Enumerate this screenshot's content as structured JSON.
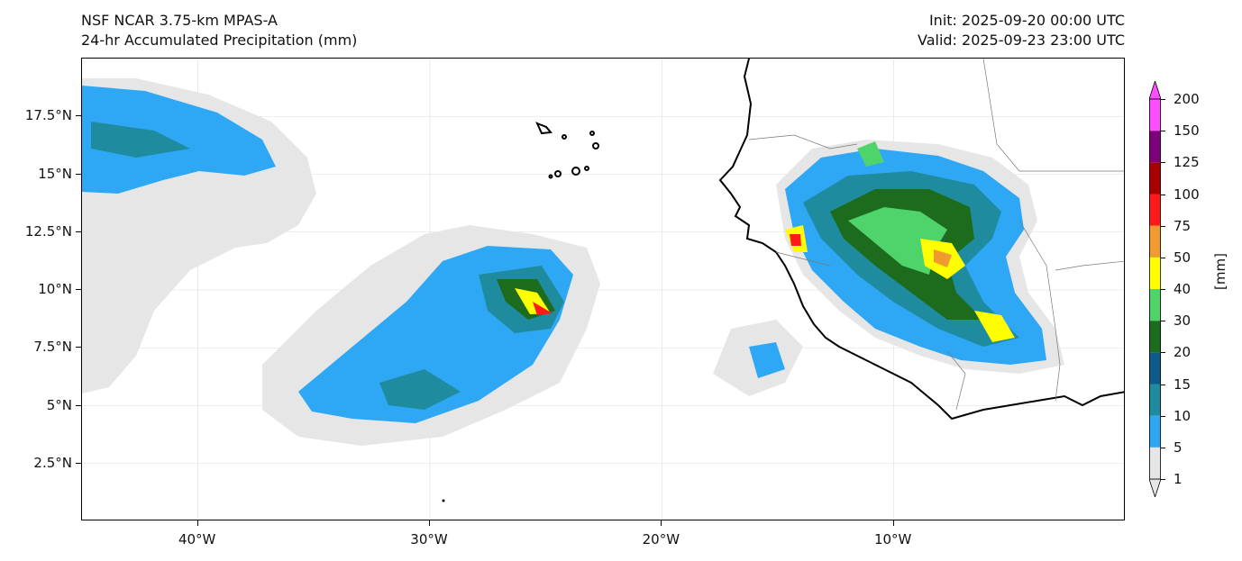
{
  "header": {
    "model_title": "NSF NCAR 3.75-km MPAS-A",
    "field_title": "24-hr Accumulated Precipitation (mm)",
    "init_time": "Init: 2025-09-20 00:00 UTC",
    "valid_time": "Valid: 2025-09-23 23:00 UTC"
  },
  "map": {
    "lon_range": [
      -45,
      0
    ],
    "lat_range": [
      0,
      20
    ],
    "lat_ticks": [
      {
        "value": 17.5,
        "label": "17.5°N"
      },
      {
        "value": 15,
        "label": "15°N"
      },
      {
        "value": 12.5,
        "label": "12.5°N"
      },
      {
        "value": 10,
        "label": "10°N"
      },
      {
        "value": 7.5,
        "label": "7.5°N"
      },
      {
        "value": 5,
        "label": "5°N"
      },
      {
        "value": 2.5,
        "label": "2.5°N"
      }
    ],
    "lon_ticks": [
      {
        "value": -40,
        "label": "40°W"
      },
      {
        "value": -30,
        "label": "30°W"
      },
      {
        "value": -20,
        "label": "20°W"
      },
      {
        "value": -10,
        "label": "10°W"
      }
    ],
    "grid": true
  },
  "colorbar": {
    "units_label": "[mm]",
    "levels": [
      "1",
      "5",
      "10",
      "15",
      "20",
      "30",
      "40",
      "50",
      "75",
      "100",
      "125",
      "150",
      "200"
    ],
    "colors": [
      "#e6e6e6",
      "#2ea8f5",
      "#1e8c9e",
      "#0d5a8c",
      "#1d6b1d",
      "#4fd36b",
      "#ffff00",
      "#f09a30",
      "#ff1a1a",
      "#a80000",
      "#7f007f",
      "#ff4dff"
    ]
  }
}
